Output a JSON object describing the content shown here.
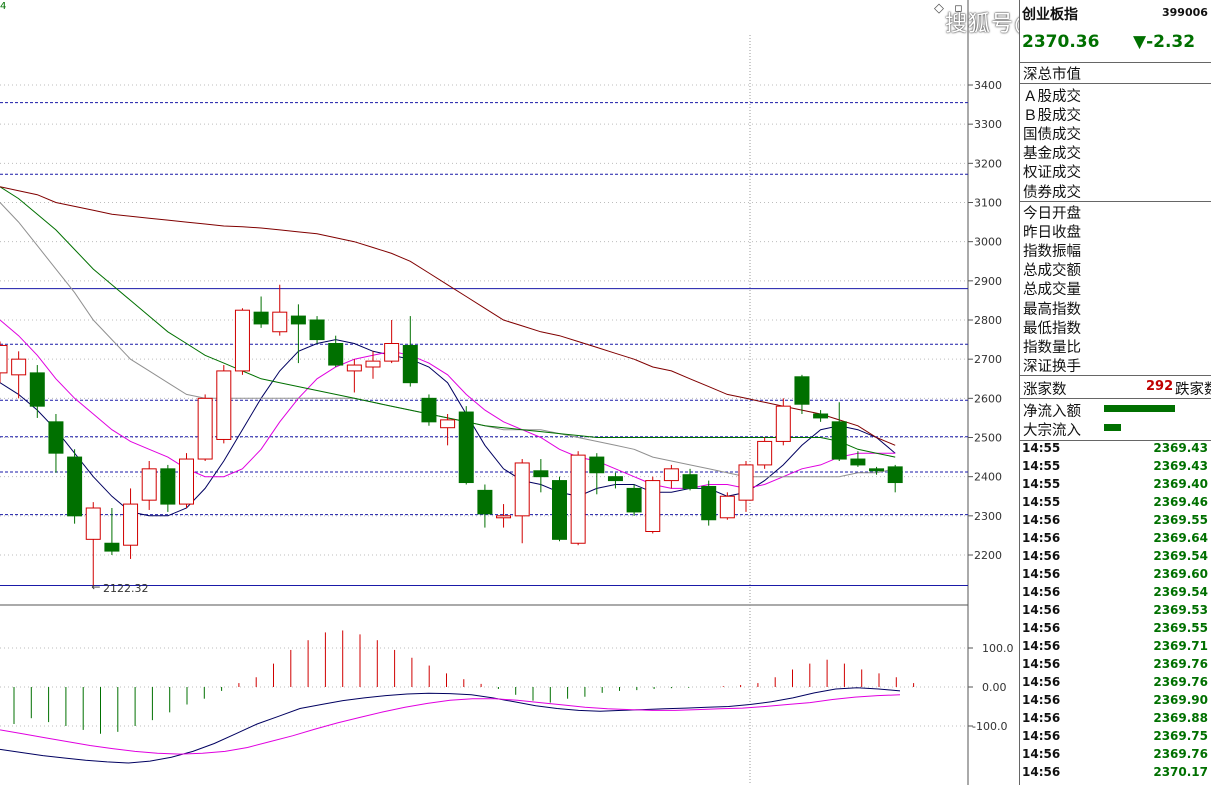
{
  "header": {
    "left_mark": "4",
    "index_name": "创业板指",
    "index_code": "399006",
    "price": "2370.36",
    "change": "▼-2.32",
    "watermark": "搜狐号@风雨顺德人"
  },
  "chart_data": {
    "type": "candlestick",
    "price_axis": {
      "ylim": [
        2080,
        3480
      ],
      "ticks": [
        2200,
        2300,
        2400,
        2500,
        2600,
        2700,
        2800,
        2900,
        3000,
        3100,
        3200,
        3300,
        3400
      ]
    },
    "low_label": "2122.32",
    "candles": [
      {
        "o": 2665,
        "c": 2735,
        "h": 2745,
        "l": 2640
      },
      {
        "o": 2660,
        "c": 2700,
        "h": 2720,
        "l": 2600
      },
      {
        "o": 2665,
        "c": 2580,
        "h": 2685,
        "l": 2550
      },
      {
        "o": 2540,
        "c": 2460,
        "h": 2560,
        "l": 2410
      },
      {
        "o": 2450,
        "c": 2300,
        "h": 2470,
        "l": 2280
      },
      {
        "o": 2240,
        "c": 2320,
        "h": 2335,
        "l": 2122
      },
      {
        "o": 2230,
        "c": 2210,
        "h": 2320,
        "l": 2200
      },
      {
        "o": 2225,
        "c": 2330,
        "h": 2370,
        "l": 2190
      },
      {
        "o": 2340,
        "c": 2420,
        "h": 2440,
        "l": 2315
      },
      {
        "o": 2420,
        "c": 2330,
        "h": 2430,
        "l": 2310
      },
      {
        "o": 2330,
        "c": 2445,
        "h": 2460,
        "l": 2320
      },
      {
        "o": 2445,
        "c": 2600,
        "h": 2610,
        "l": 2440
      },
      {
        "o": 2495,
        "c": 2670,
        "h": 2685,
        "l": 2485
      },
      {
        "o": 2670,
        "c": 2825,
        "h": 2830,
        "l": 2660
      },
      {
        "o": 2820,
        "c": 2790,
        "h": 2860,
        "l": 2780
      },
      {
        "o": 2770,
        "c": 2820,
        "h": 2890,
        "l": 2760
      },
      {
        "o": 2810,
        "c": 2790,
        "h": 2840,
        "l": 2690
      },
      {
        "o": 2800,
        "c": 2750,
        "h": 2810,
        "l": 2740
      },
      {
        "o": 2740,
        "c": 2685,
        "h": 2760,
        "l": 2680
      },
      {
        "o": 2670,
        "c": 2685,
        "h": 2700,
        "l": 2615
      },
      {
        "o": 2680,
        "c": 2695,
        "h": 2720,
        "l": 2650
      },
      {
        "o": 2695,
        "c": 2740,
        "h": 2800,
        "l": 2690
      },
      {
        "o": 2735,
        "c": 2640,
        "h": 2810,
        "l": 2630
      },
      {
        "o": 2600,
        "c": 2540,
        "h": 2610,
        "l": 2530
      },
      {
        "o": 2525,
        "c": 2545,
        "h": 2560,
        "l": 2480
      },
      {
        "o": 2565,
        "c": 2385,
        "h": 2580,
        "l": 2380
      },
      {
        "o": 2365,
        "c": 2305,
        "h": 2380,
        "l": 2270
      },
      {
        "o": 2295,
        "c": 2300,
        "h": 2330,
        "l": 2270
      },
      {
        "o": 2300,
        "c": 2435,
        "h": 2445,
        "l": 2230
      },
      {
        "o": 2415,
        "c": 2400,
        "h": 2445,
        "l": 2360
      },
      {
        "o": 2390,
        "c": 2240,
        "h": 2400,
        "l": 2235
      },
      {
        "o": 2230,
        "c": 2455,
        "h": 2465,
        "l": 2225
      },
      {
        "o": 2450,
        "c": 2410,
        "h": 2460,
        "l": 2355
      },
      {
        "o": 2400,
        "c": 2390,
        "h": 2410,
        "l": 2370
      },
      {
        "o": 2370,
        "c": 2310,
        "h": 2380,
        "l": 2300
      },
      {
        "o": 2260,
        "c": 2390,
        "h": 2400,
        "l": 2255
      },
      {
        "o": 2390,
        "c": 2420,
        "h": 2430,
        "l": 2370
      },
      {
        "o": 2405,
        "c": 2370,
        "h": 2420,
        "l": 2365
      },
      {
        "o": 2375,
        "c": 2290,
        "h": 2390,
        "l": 2275
      },
      {
        "o": 2295,
        "c": 2350,
        "h": 2360,
        "l": 2290
      },
      {
        "o": 2340,
        "c": 2430,
        "h": 2440,
        "l": 2310
      },
      {
        "o": 2430,
        "c": 2490,
        "h": 2500,
        "l": 2420
      },
      {
        "o": 2490,
        "c": 2580,
        "h": 2600,
        "l": 2480
      },
      {
        "o": 2655,
        "c": 2585,
        "h": 2660,
        "l": 2560
      },
      {
        "o": 2560,
        "c": 2550,
        "h": 2570,
        "l": 2540
      },
      {
        "o": 2540,
        "c": 2445,
        "h": 2590,
        "l": 2440
      },
      {
        "o": 2445,
        "c": 2430,
        "h": 2465,
        "l": 2425
      },
      {
        "o": 2420,
        "c": 2415,
        "h": 2425,
        "l": 2405
      },
      {
        "o": 2425,
        "c": 2385,
        "h": 2430,
        "l": 2360
      }
    ],
    "moving_averages": [
      {
        "color": "#000060",
        "values": [
          2640,
          2610,
          2570,
          2520,
          2460,
          2400,
          2350,
          2310,
          2300,
          2300,
          2320,
          2370,
          2440,
          2520,
          2600,
          2670,
          2720,
          2740,
          2750,
          2740,
          2720,
          2710,
          2700,
          2680,
          2640,
          2560,
          2480,
          2420,
          2390,
          2380,
          2360,
          2350,
          2370,
          2380,
          2380,
          2360,
          2360,
          2370,
          2370,
          2350,
          2360,
          2390,
          2430,
          2480,
          2520,
          2530,
          2520,
          2500,
          2460
        ]
      },
      {
        "color": "#e000e0",
        "values": [
          2800,
          2760,
          2710,
          2650,
          2600,
          2560,
          2520,
          2490,
          2470,
          2450,
          2420,
          2400,
          2400,
          2420,
          2470,
          2540,
          2600,
          2650,
          2680,
          2700,
          2710,
          2720,
          2710,
          2690,
          2660,
          2610,
          2570,
          2540,
          2520,
          2500,
          2470,
          2450,
          2440,
          2420,
          2400,
          2380,
          2370,
          2370,
          2380,
          2380,
          2370,
          2380,
          2400,
          2420,
          2430,
          2450,
          2460,
          2460,
          2460
        ]
      },
      {
        "color": "#909090",
        "values": [
          3100,
          3050,
          2990,
          2930,
          2870,
          2800,
          2750,
          2700,
          2670,
          2640,
          2610,
          2600,
          2600,
          2600,
          2600,
          2600,
          2600,
          2600,
          2600,
          2600,
          2590,
          2580,
          2570,
          2560,
          2550,
          2540,
          2530,
          2520,
          2520,
          2520,
          2510,
          2500,
          2490,
          2480,
          2470,
          2450,
          2440,
          2430,
          2420,
          2410,
          2400,
          2400,
          2400,
          2400,
          2400,
          2400,
          2410,
          2410,
          2420
        ]
      },
      {
        "color": "#007000",
        "values": [
          3140,
          3110,
          3070,
          3030,
          2980,
          2930,
          2890,
          2850,
          2810,
          2770,
          2740,
          2710,
          2690,
          2670,
          2650,
          2640,
          2630,
          2620,
          2610,
          2600,
          2590,
          2580,
          2570,
          2560,
          2550,
          2540,
          2530,
          2525,
          2520,
          2515,
          2510,
          2505,
          2500,
          2500,
          2500,
          2500,
          2500,
          2500,
          2500,
          2500,
          2500,
          2500,
          2500,
          2500,
          2500,
          2490,
          2470,
          2460,
          2450
        ]
      },
      {
        "color": "#800000",
        "values": [
          3140,
          3130,
          3120,
          3100,
          3090,
          3080,
          3070,
          3065,
          3060,
          3055,
          3050,
          3045,
          3040,
          3038,
          3035,
          3030,
          3025,
          3020,
          3010,
          3000,
          2985,
          2970,
          2950,
          2920,
          2890,
          2860,
          2830,
          2800,
          2785,
          2770,
          2760,
          2745,
          2730,
          2715,
          2700,
          2680,
          2670,
          2650,
          2630,
          2610,
          2600,
          2590,
          2580,
          2570,
          2560,
          2545,
          2530,
          2500,
          2480
        ]
      }
    ],
    "macd_axis": {
      "ylim": [
        -240,
        190
      ],
      "ticks": [
        "100.0",
        "0.00",
        "-100.0"
      ]
    },
    "macd_hist": [
      -95,
      -80,
      -90,
      -100,
      -110,
      -120,
      -115,
      -100,
      -85,
      -65,
      -45,
      -30,
      -10,
      10,
      25,
      60,
      95,
      120,
      140,
      145,
      135,
      120,
      95,
      75,
      55,
      35,
      20,
      8,
      -5,
      -20,
      -35,
      -40,
      -30,
      -25,
      -15,
      -10,
      -8,
      -5,
      -3,
      -2,
      0,
      2,
      5,
      10,
      25,
      45,
      60,
      70,
      60,
      45,
      35,
      25,
      10
    ],
    "macd_dif": [
      -160,
      -168,
      -176,
      -182,
      -188,
      -192,
      -195,
      -190,
      -180,
      -165,
      -145,
      -120,
      -95,
      -75,
      -55,
      -45,
      -35,
      -28,
      -22,
      -18,
      -16,
      -17,
      -20,
      -28,
      -38,
      -48,
      -55,
      -60,
      -62,
      -60,
      -58,
      -56,
      -54,
      -52,
      -50,
      -45,
      -38,
      -28,
      -15,
      -5,
      -2,
      -5,
      -10
    ],
    "macd_dea": [
      -110,
      -120,
      -130,
      -140,
      -150,
      -158,
      -165,
      -170,
      -172,
      -170,
      -165,
      -155,
      -140,
      -125,
      -108,
      -92,
      -78,
      -64,
      -52,
      -42,
      -34,
      -30,
      -30,
      -34,
      -40,
      -46,
      -52,
      -56,
      -58,
      -60,
      -60,
      -58,
      -56,
      -54,
      -50,
      -45,
      -40,
      -32,
      -26,
      -22,
      -20
    ]
  },
  "panel": {
    "sections": [
      [
        "深总市值"
      ],
      [
        "Ａ股成交",
        "Ｂ股成交",
        "国债成交",
        "基金成交",
        "权证成交",
        "债券成交"
      ],
      [
        "今日开盘",
        "昨日收盘",
        "指数振幅",
        "总成交额",
        "总成交量",
        "最高指数",
        "最低指数",
        "指数量比",
        "深证换手"
      ]
    ],
    "advance_label": "涨家数",
    "advance_value": "292",
    "decline_label": "跌家数",
    "flow": [
      {
        "label": "净流入额",
        "bar_color": "#007000",
        "bar_fraction": 0.85
      },
      {
        "label": "大宗流入",
        "bar_color": "#007000",
        "bar_fraction": 0.2
      }
    ],
    "ticks": [
      {
        "time": "14:55",
        "value": "2369.43"
      },
      {
        "time": "14:55",
        "value": "2369.43"
      },
      {
        "time": "14:55",
        "value": "2369.40"
      },
      {
        "time": "14:55",
        "value": "2369.46"
      },
      {
        "time": "14:56",
        "value": "2369.55"
      },
      {
        "time": "14:56",
        "value": "2369.64"
      },
      {
        "time": "14:56",
        "value": "2369.54"
      },
      {
        "time": "14:56",
        "value": "2369.60"
      },
      {
        "time": "14:56",
        "value": "2369.54"
      },
      {
        "time": "14:56",
        "value": "2369.53"
      },
      {
        "time": "14:56",
        "value": "2369.55"
      },
      {
        "time": "14:56",
        "value": "2369.71"
      },
      {
        "time": "14:56",
        "value": "2369.76"
      },
      {
        "time": "14:56",
        "value": "2369.76"
      },
      {
        "time": "14:56",
        "value": "2369.90"
      },
      {
        "time": "14:56",
        "value": "2369.88"
      },
      {
        "time": "14:56",
        "value": "2369.75"
      },
      {
        "time": "14:56",
        "value": "2369.76"
      },
      {
        "time": "14:56",
        "value": "2370.17"
      }
    ]
  }
}
